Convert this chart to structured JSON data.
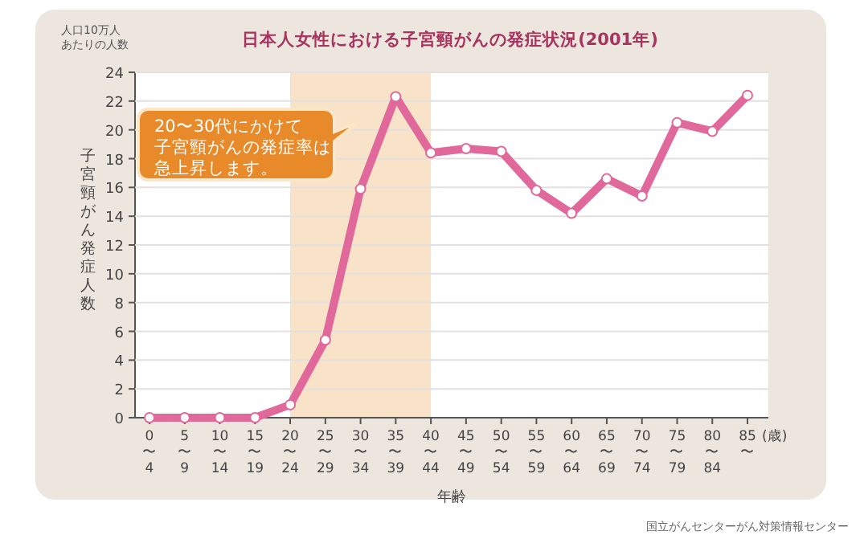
{
  "chart_data": {
    "type": "line",
    "title": "日本人女性における子宮頸がんの発症状況(2001年)",
    "xlabel": "年齢",
    "ylabel": "子宮頸がん発症人数",
    "categories": [
      "0〜4",
      "5〜9",
      "10〜14",
      "15〜19",
      "20〜24",
      "25〜29",
      "30〜34",
      "35〜39",
      "40〜44",
      "45〜49",
      "50〜54",
      "55〜59",
      "60〜64",
      "65〜69",
      "70〜74",
      "75〜79",
      "80〜84",
      "85〜"
    ],
    "series": [
      {
        "color": "#e0689a",
        "values": [
          0,
          0,
          0,
          0,
          0.9,
          5.4,
          15.9,
          22.3,
          18.4,
          18.7,
          18.5,
          15.8,
          14.2,
          16.6,
          15.4,
          20.5,
          19.9,
          22.4
        ]
      }
    ],
    "ylim": [
      0,
      24
    ],
    "yticks": [
      0,
      2,
      4,
      6,
      8,
      10,
      12,
      14,
      16,
      18,
      20,
      22,
      24
    ],
    "grid": "y",
    "marker": "circle",
    "line_style": "solid",
    "bands": [
      {
        "axis": "x",
        "from": "20〜24",
        "to": "40〜44",
        "color": "#f8e2c8"
      }
    ],
    "annotations": [
      "人口10万人あたりの人数",
      "20〜30代にかけて子宮頸がんの発症率は急上昇します。",
      "(歳)",
      "国立がんセンターがん対策情報センター"
    ]
  }
}
